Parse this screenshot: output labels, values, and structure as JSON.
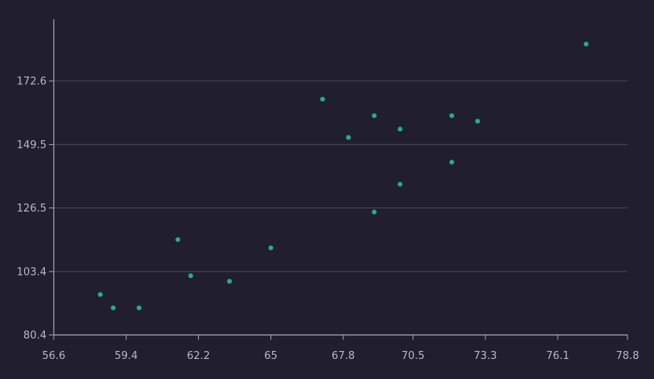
{
  "chart_data": {
    "type": "scatter",
    "title": "",
    "xlabel": "",
    "ylabel": "",
    "xlim": [
      56.6,
      78.8
    ],
    "ylim": [
      80.4,
      195.0
    ],
    "x_ticks": [
      "56.6",
      "59.4",
      "62.2",
      "65",
      "67.8",
      "70.5",
      "73.3",
      "76.1",
      "78.8"
    ],
    "y_ticks": [
      "80.4",
      "103.4",
      "126.5",
      "149.5",
      "172.6"
    ],
    "grid": "horizontal",
    "legend": "none",
    "points": [
      {
        "x": 58.4,
        "y": 95.1
      },
      {
        "x": 58.9,
        "y": 90.2
      },
      {
        "x": 59.9,
        "y": 90.2
      },
      {
        "x": 61.4,
        "y": 115.0
      },
      {
        "x": 61.9,
        "y": 101.9
      },
      {
        "x": 63.4,
        "y": 99.9
      },
      {
        "x": 65.0,
        "y": 112.0
      },
      {
        "x": 67.0,
        "y": 166.0
      },
      {
        "x": 68.0,
        "y": 152.1
      },
      {
        "x": 69.0,
        "y": 160.0
      },
      {
        "x": 70.0,
        "y": 155.1
      },
      {
        "x": 69.0,
        "y": 125.0
      },
      {
        "x": 70.0,
        "y": 135.1
      },
      {
        "x": 72.0,
        "y": 160.0
      },
      {
        "x": 72.0,
        "y": 143.1
      },
      {
        "x": 73.0,
        "y": 158.0
      },
      {
        "x": 77.2,
        "y": 186.0
      }
    ]
  },
  "colors": {
    "background": "#211f2d",
    "point": "#1fae8e",
    "axis": "#a9a6b4",
    "grid": "#4a4757",
    "tick_text": "#b9b6c6"
  }
}
